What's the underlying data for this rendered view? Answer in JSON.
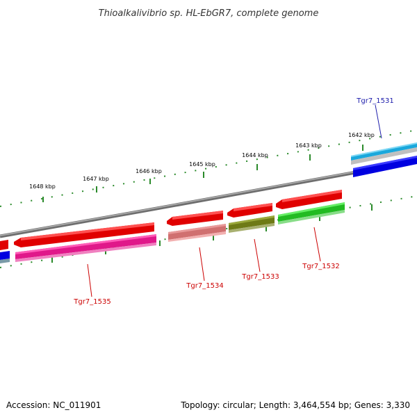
{
  "title": "Thioalkalivibrio sp. HL-EbGR7, complete genome",
  "footer": {
    "accession": "Accession: NC_011901",
    "topology": "Topology: circular; Length: 3,464,554 bp; Genes: 3,330"
  },
  "colors": {
    "backbone": "#808080",
    "tick": "#2a8a2a",
    "label_red": "#cc0000",
    "label_blue": "#1a1aaa"
  },
  "ruler": {
    "unit": "kbp",
    "labels": [
      "1642 kbp",
      "1643 kbp",
      "1644 kbp",
      "1645 kbp",
      "1646 kbp",
      "1647 kbp",
      "1648 kbp"
    ]
  },
  "genes": [
    {
      "label": "Tgr7_1531",
      "label_color": "#1a1aaa"
    },
    {
      "label": "Tgr7_1532",
      "label_color": "#cc0000"
    },
    {
      "label": "Tgr7_1533",
      "label_color": "#cc0000"
    },
    {
      "label": "Tgr7_1534",
      "label_color": "#cc0000"
    },
    {
      "label": "Tgr7_1535",
      "label_color": "#cc0000"
    }
  ]
}
